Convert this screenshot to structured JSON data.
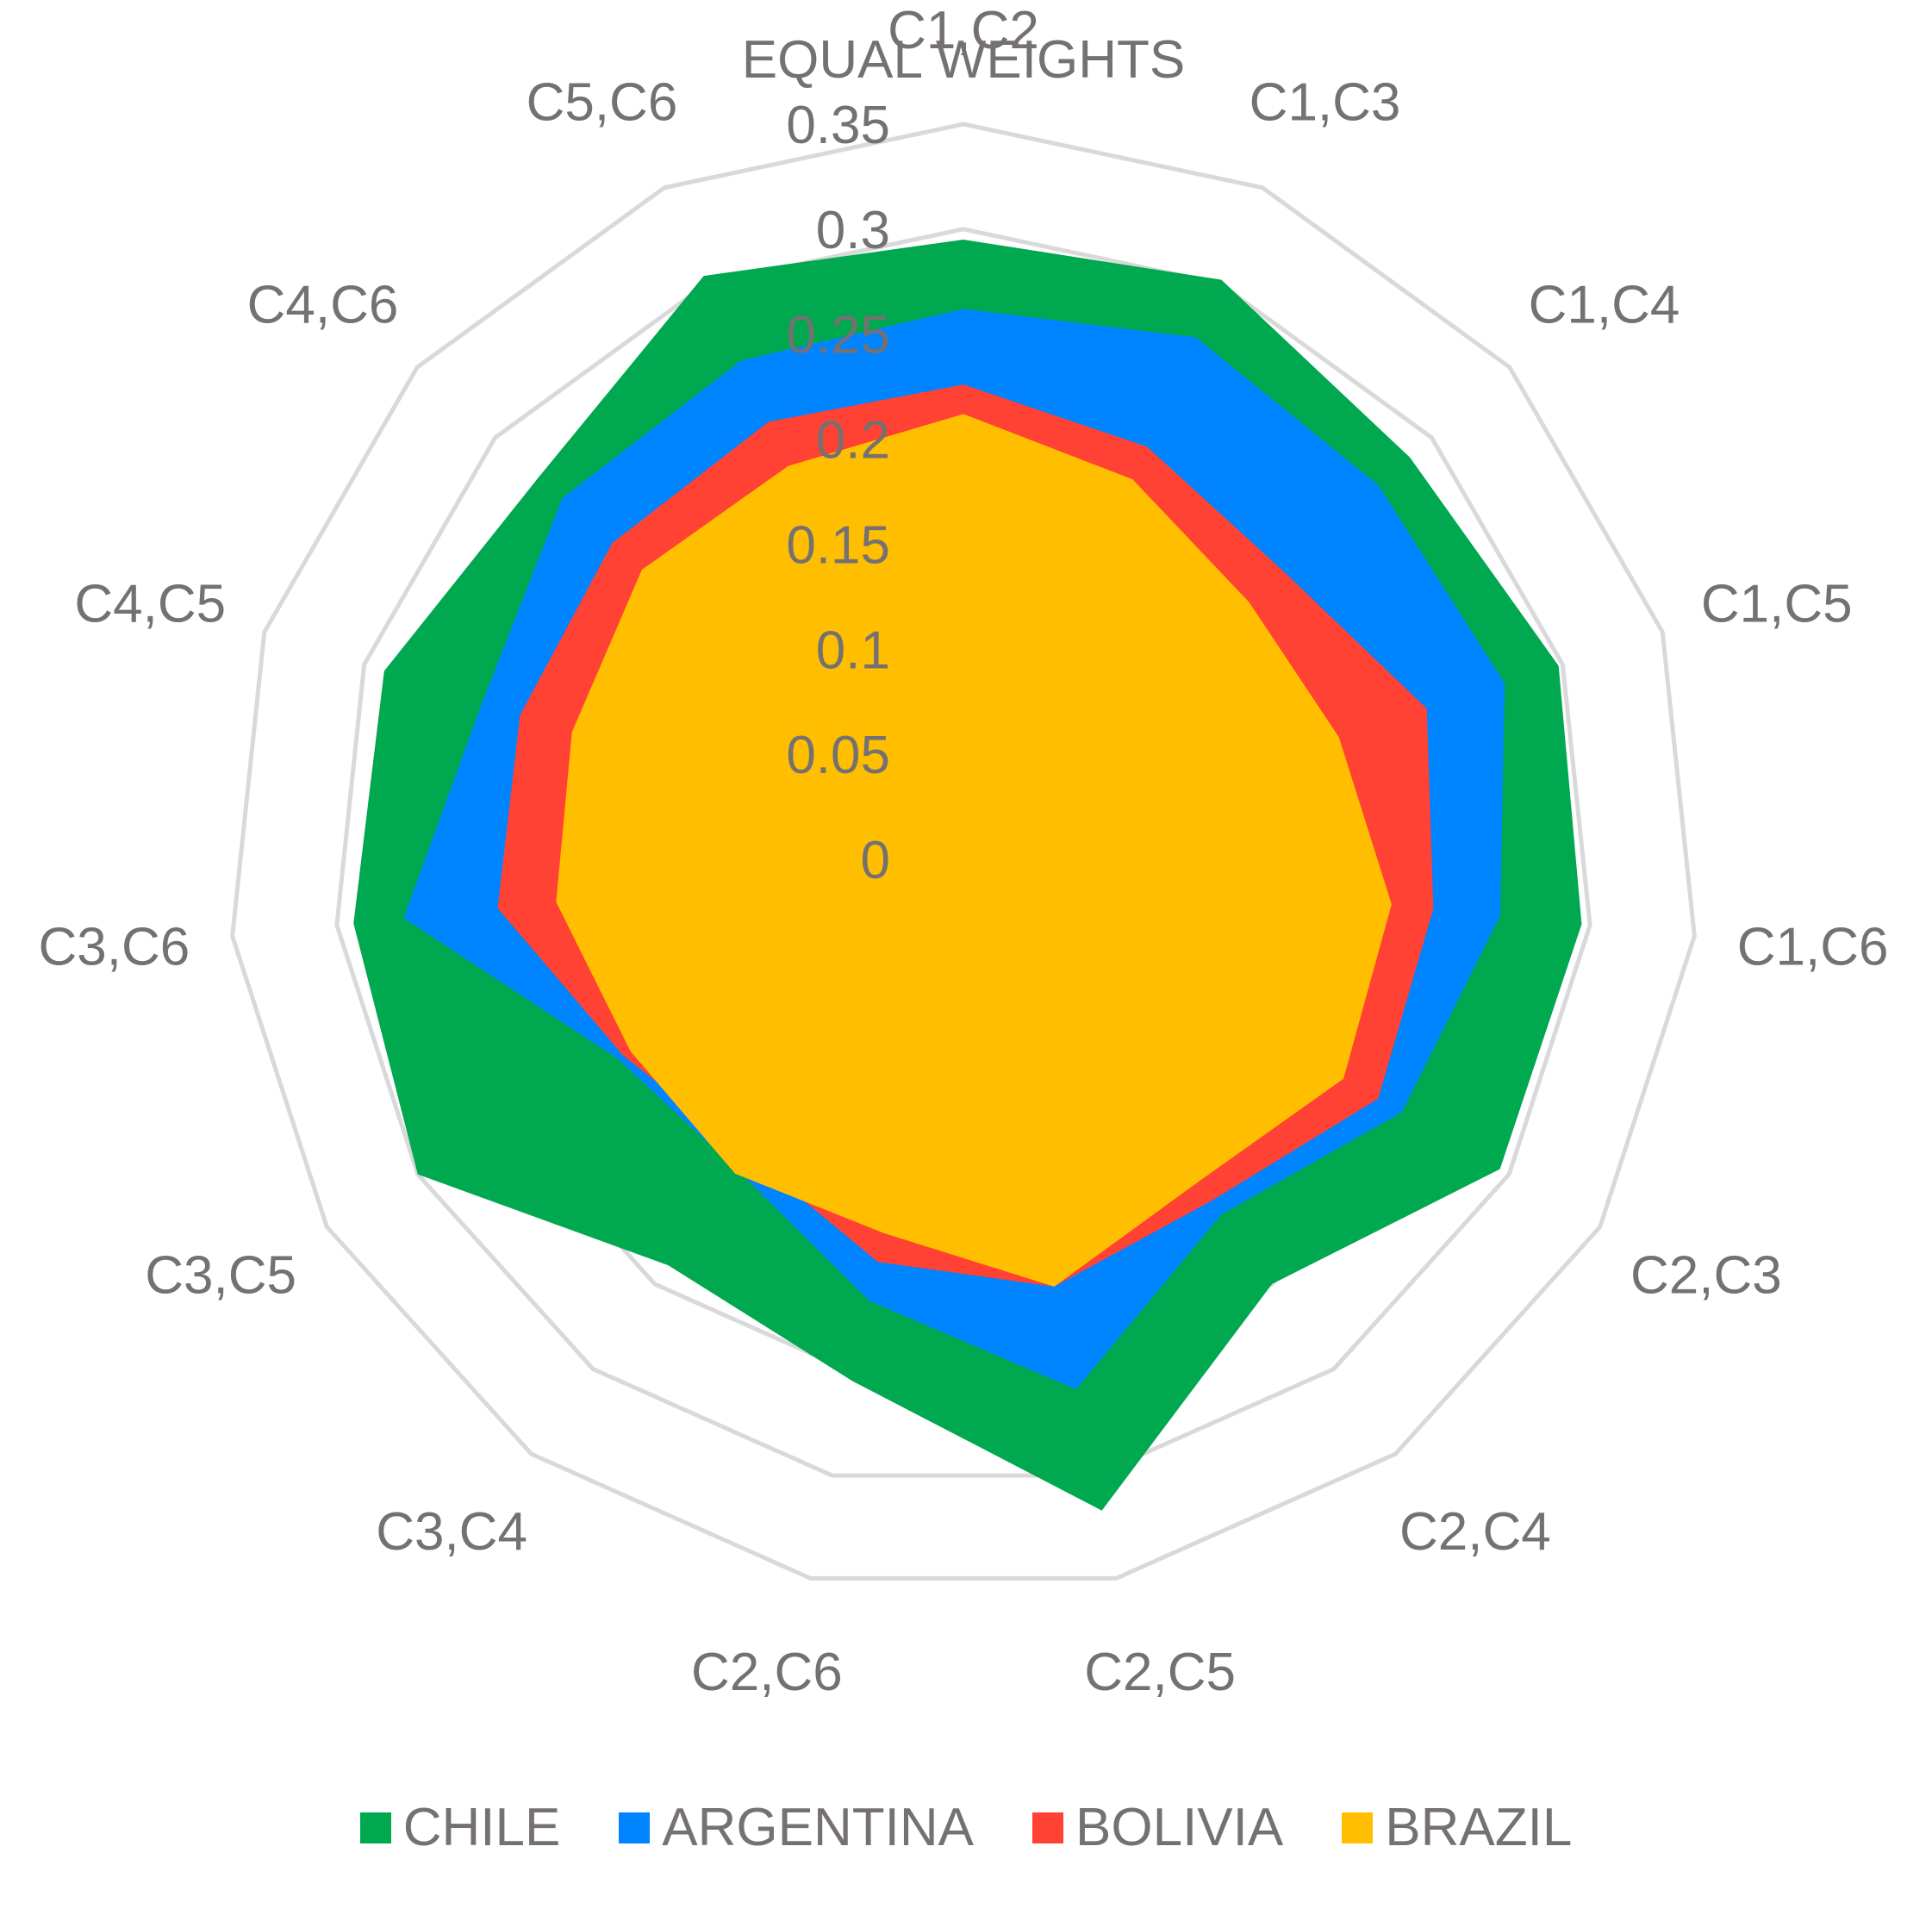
{
  "chart_data": {
    "type": "radar",
    "title": "EQUAL WEIGHTS",
    "categories": [
      "C1,C2",
      "C1,C3",
      "C1,C4",
      "C1,C5",
      "C1,C6",
      "C2,C3",
      "C2,C4",
      "C2,C5",
      "C2,C6",
      "C3,C4",
      "C3,C5",
      "C3,C6",
      "C4,C5",
      "C4,C6",
      "C5,C6"
    ],
    "ticks": [
      "0",
      "0.05",
      "0.1",
      "0.15",
      "0.2",
      "0.25",
      "0.3",
      "0.35"
    ],
    "rlim": [
      0,
      0.35
    ],
    "grid": true,
    "legend_position": "bottom",
    "series": [
      {
        "name": "CHILE",
        "color": "#00A84F",
        "values": [
          0.295,
          0.302,
          0.286,
          0.298,
          0.296,
          0.295,
          0.25,
          0.317,
          0.254,
          0.239,
          0.3,
          0.292,
          0.29,
          0.272,
          0.304
        ]
      },
      {
        "name": "ARGENTINA",
        "color": "#0084FF",
        "values": [
          0.262,
          0.272,
          0.266,
          0.271,
          0.257,
          0.241,
          0.209,
          0.258,
          0.215,
          0.183,
          0.19,
          0.268,
          0.241,
          0.257,
          0.26
        ]
      },
      {
        "name": "BOLIVIA",
        "color": "#FF4233",
        "values": [
          0.226,
          0.215,
          0.205,
          0.232,
          0.225,
          0.228,
          0.201,
          0.208,
          0.196,
          0.174,
          0.187,
          0.223,
          0.222,
          0.225,
          0.228
        ]
      },
      {
        "name": "BRAZIL",
        "color": "#FFBF00",
        "values": [
          0.212,
          0.198,
          0.183,
          0.188,
          0.205,
          0.209,
          0.19,
          0.208,
          0.182,
          0.185,
          0.183,
          0.195,
          0.196,
          0.206,
          0.205
        ]
      }
    ]
  }
}
